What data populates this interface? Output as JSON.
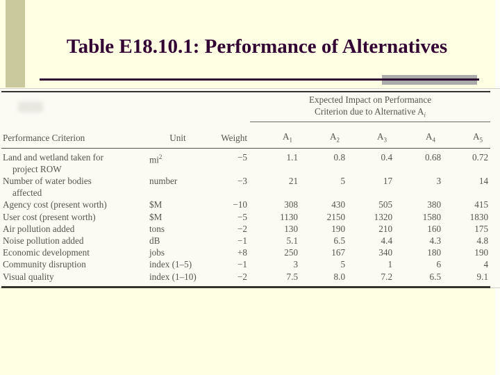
{
  "slide": {
    "title": "Table E18.10.1: Performance of Alternatives"
  },
  "colors": {
    "background": "#FFFFE3",
    "sidebar_strip": "#C9C99D",
    "title_text": "#330033",
    "underline": "#2E082E",
    "accent_bar": "#ABABAB",
    "scan_background": "#FBFBF4",
    "scan_text": "#55554C"
  },
  "table": {
    "span_header": {
      "line1": "Expected Impact on Performance",
      "line2_prefix": "Criterion due to Alternative A",
      "line2_subscript": "i"
    },
    "headers": {
      "criterion": "Performance Criterion",
      "unit": "Unit",
      "weight": "Weight",
      "alternatives": [
        {
          "base": "A",
          "sub": "1"
        },
        {
          "base": "A",
          "sub": "2"
        },
        {
          "base": "A",
          "sub": "3"
        },
        {
          "base": "A",
          "sub": "4"
        },
        {
          "base": "A",
          "sub": "5"
        }
      ]
    },
    "rows": [
      {
        "criterion": [
          "Land and wetland taken for",
          "project ROW"
        ],
        "unit": "mi",
        "unit_sup": "2",
        "weight": "−5",
        "values": [
          "1.1",
          "0.8",
          "0.4",
          "0.68",
          "0.72"
        ]
      },
      {
        "criterion": [
          "Number of water bodies",
          "affected"
        ],
        "unit": "number",
        "weight": "−3",
        "values": [
          "21",
          "5",
          "17",
          "3",
          "14"
        ]
      },
      {
        "criterion": [
          "Agency cost (present worth)"
        ],
        "unit": "$M",
        "weight": "−10",
        "values": [
          "308",
          "430",
          "505",
          "380",
          "415"
        ]
      },
      {
        "criterion": [
          "User cost (present worth)"
        ],
        "unit": "$M",
        "weight": "−5",
        "values": [
          "1130",
          "2150",
          "1320",
          "1580",
          "1830"
        ]
      },
      {
        "criterion": [
          "Air pollution added"
        ],
        "unit": "tons",
        "weight": "−2",
        "values": [
          "130",
          "190",
          "210",
          "160",
          "175"
        ]
      },
      {
        "criterion": [
          "Noise pollution added"
        ],
        "unit": "dB",
        "weight": "−1",
        "values": [
          "5.1",
          "6.5",
          "4.4",
          "4.3",
          "4.8"
        ]
      },
      {
        "criterion": [
          "Economic development"
        ],
        "unit": "jobs",
        "weight": "+8",
        "values": [
          "250",
          "167",
          "340",
          "180",
          "190"
        ]
      },
      {
        "criterion": [
          "Community disruption"
        ],
        "unit": "index (1–5)",
        "weight": "−1",
        "values": [
          "3",
          "5",
          "1",
          "6",
          "4"
        ]
      },
      {
        "criterion": [
          "Visual quality"
        ],
        "unit": "index (1–10)",
        "weight": "−2",
        "values": [
          "7.5",
          "8.0",
          "7.2",
          "6.5",
          "9.1"
        ]
      }
    ]
  }
}
